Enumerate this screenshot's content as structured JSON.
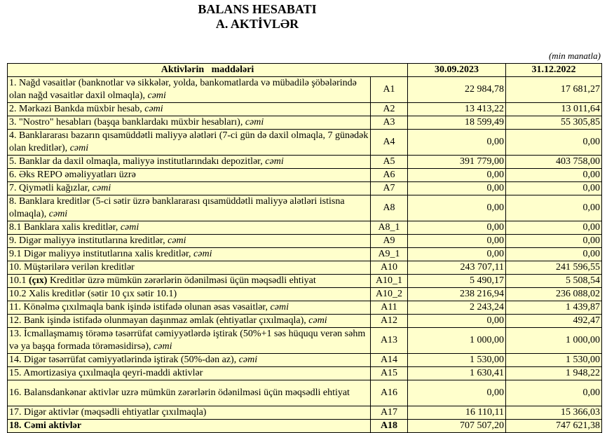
{
  "title": "BALANS HESABATI",
  "subtitle": "A. AKTİVLƏR",
  "unit": "(min manatla)",
  "header": {
    "items": "Aktivlərin   maddələri",
    "col1": "30.09.2023",
    "col2": "31.12.2022"
  },
  "colors": {
    "table_background": "#FFFFCC",
    "border": "#000000"
  },
  "rows": [
    {
      "label": "1. Nağd vəsaitlər (banknotlar və sikkələr, yolda, bankomatlarda və mübadilə şöbələrində olan nağd vəsaitlər daxil olmaqla), ",
      "italic": "cəmi",
      "code": "A1",
      "v1": "22 984,78",
      "v2": "17 681,27",
      "tall": true
    },
    {
      "label": "2. Mərkəzi Bankda müxbir hesab, ",
      "italic": "cəmi",
      "code": "A2",
      "v1": "13 413,22",
      "v2": "13 011,64"
    },
    {
      "label": "3. \"Nostro\" hesabları (başqa banklardakı müxbir hesabları), ",
      "italic": "cəmi",
      "code": "A3",
      "v1": "18 599,49",
      "v2": "55 305,85"
    },
    {
      "label": "4. Banklararası bazarın qısamüddətli maliyyə alətləri (7-ci gün də daxil olmaqla, 7 günədək olan kreditlər), ",
      "italic": "cəmi",
      "code": "A4",
      "v1": "0,00",
      "v2": "0,00",
      "tall": true
    },
    {
      "label": "5. Banklar da daxil olmaqla, maliyyə institutlarındakı depozitlər, ",
      "italic": "cəmi",
      "code": "A5",
      "v1": "391 779,00",
      "v2": "403 758,00"
    },
    {
      "label": "6. Əks REPO əməliyyatları üzrə",
      "code": "A6",
      "v1": "0,00",
      "v2": "0,00"
    },
    {
      "label": "7. Qiymətli kağızlar, ",
      "italic": "cəmi",
      "code": "A7",
      "v1": "0,00",
      "v2": "0,00"
    },
    {
      "label": "8. Banklara kreditlər (5-ci sətir üzrə banklararası qısamüddətli maliyyə alətləri istisna olmaqla), ",
      "italic": "cəmi",
      "code": "A8",
      "v1": "0,00",
      "v2": "0,00",
      "tall": true
    },
    {
      "label": "8.1 Banklara xalis kreditlər, ",
      "italic": "cəmi",
      "code": "A8_1",
      "v1": "0,00",
      "v2": "0,00"
    },
    {
      "label": "9. Digər maliyyə institutlarına kreditlər, ",
      "italic": "cəmi",
      "code": "A9",
      "v1": "0,00",
      "v2": "0,00"
    },
    {
      "label": "9.1 Digər maliyyə institutlarına xalis kreditlər, ",
      "italic": "cəmi",
      "code": "A9_1",
      "v1": "0,00",
      "v2": "0,00"
    },
    {
      "label": "10. Müştərilərə verilən kreditlər",
      "code": "A10",
      "v1": "243 707,11",
      "v2": "241 596,55"
    },
    {
      "prefix": "10.1 ",
      "bold": "(çıx)",
      "label": " Kreditlər üzrə mümkün zərərlərin ödənilməsi üçün məqsədli ehtiyat",
      "code": "A10_1",
      "v1": "5 490,17",
      "v2": "5 508,54"
    },
    {
      "label": "10.2 Xalis kreditlər (sətir 10 çıx sətir 10.1)",
      "code": "A10_2",
      "v1": "238 216,94",
      "v2": "236 088,02"
    },
    {
      "label": "11. Könəlmə çıxılmaqla bank işində istifadə olunan əsas vəsaitlər, ",
      "italic": "cəmi",
      "code": "A11",
      "v1": "2 243,24",
      "v2": "1 439,87"
    },
    {
      "label": "12. Bank işində istifadə olunmayan daşınmaz əmlak (ehtiyatlar çıxılmaqla), ",
      "italic": "cəmi",
      "code": "A12",
      "v1": "0,00",
      "v2": "492,47"
    },
    {
      "label": "13. İcmallaşmamış törəmə təsərrüfat cəmiyyətlərdə iştirak (50%+1 səs hüququ verən səhm və ya başqa formada törəməsidirsə), ",
      "italic": "cəmi",
      "code": "A13",
      "v1": "1 000,00",
      "v2": "1 000,00",
      "tall": true
    },
    {
      "label": "14. Digər təsərrüfat cəmiyyətlərində iştirak (50%-dən az), ",
      "italic": "cəmi",
      "code": "A14",
      "v1": "1 530,00",
      "v2": "1 530,00"
    },
    {
      "label": "15. Amortizasiya çıxılmaqla qeyri-maddi aktivlər",
      "code": "A15",
      "v1": "1 630,41",
      "v2": "1 948,22"
    },
    {
      "label": "16. Balansdankənar aktivlər uzrə mümkün zərərlərin ödənilməsi üçün məqsədli ehtiyat",
      "code": "A16",
      "v1": "0,00",
      "v2": "0,00",
      "tall": true
    },
    {
      "label": "17. Digər aktivlər (məqsədli ehtiyatlar çıxılmaqla)",
      "code": "A17",
      "v1": "16 110,11",
      "v2": "15 366,03"
    },
    {
      "label": "18. Cəmi aktivlər",
      "code": "A18",
      "v1": "707 507,20",
      "v2": "747 621,38",
      "total": true
    }
  ]
}
